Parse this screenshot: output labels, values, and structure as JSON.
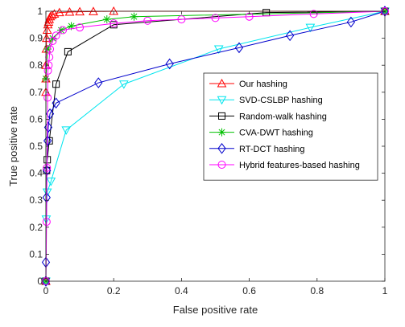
{
  "chart_data": {
    "type": "line",
    "title": "",
    "xlabel": "False positive rate",
    "ylabel": "True positive rate",
    "xlim": [
      0,
      1
    ],
    "ylim": [
      0,
      1
    ],
    "xticks": [
      "0",
      "0.2",
      "0.4",
      "0.6",
      "0.8",
      "1"
    ],
    "yticks": [
      "0",
      "0.1",
      "0.2",
      "0.3",
      "0.4",
      "0.5",
      "0.6",
      "0.7",
      "0.8",
      "0.9",
      "1"
    ],
    "grid": false,
    "legend_position": "center-right",
    "series": [
      {
        "name": "Our hashing",
        "color": "#ff0000",
        "marker": "triangle-up",
        "points": [
          [
            0,
            0
          ],
          [
            0,
            0.7
          ],
          [
            0,
            0.75
          ],
          [
            0,
            0.8
          ],
          [
            0.001,
            0.86
          ],
          [
            0.002,
            0.9
          ],
          [
            0.004,
            0.93
          ],
          [
            0.006,
            0.95
          ],
          [
            0.008,
            0.96
          ],
          [
            0.01,
            0.97
          ],
          [
            0.013,
            0.98
          ],
          [
            0.018,
            0.985
          ],
          [
            0.025,
            0.99
          ],
          [
            0.04,
            0.995
          ],
          [
            0.07,
            0.997
          ],
          [
            0.1,
            0.998
          ],
          [
            0.14,
            0.999
          ],
          [
            0.2,
            1
          ],
          [
            1,
            1
          ]
        ]
      },
      {
        "name": "SVD-CSLBP hashing",
        "color": "#00e5ee",
        "marker": "triangle-down",
        "points": [
          [
            0,
            0
          ],
          [
            0.001,
            0.23
          ],
          [
            0.004,
            0.33
          ],
          [
            0.015,
            0.37
          ],
          [
            0.06,
            0.56
          ],
          [
            0.23,
            0.73
          ],
          [
            0.51,
            0.86
          ],
          [
            0.78,
            0.94
          ],
          [
            1,
            1
          ]
        ]
      },
      {
        "name": "Random-walk hashing",
        "color": "#000000",
        "marker": "square",
        "points": [
          [
            0,
            0
          ],
          [
            0.002,
            0.41
          ],
          [
            0.004,
            0.45
          ],
          [
            0.01,
            0.52
          ],
          [
            0.03,
            0.73
          ],
          [
            0.065,
            0.85
          ],
          [
            0.2,
            0.95
          ],
          [
            0.65,
            0.995
          ],
          [
            1,
            1
          ]
        ]
      },
      {
        "name": "CVA-DWT hashing",
        "color": "#00c000",
        "marker": "asterisk",
        "points": [
          [
            0,
            0
          ],
          [
            0,
            0.75
          ],
          [
            0.005,
            0.86
          ],
          [
            0.02,
            0.9
          ],
          [
            0.045,
            0.93
          ],
          [
            0.075,
            0.945
          ],
          [
            0.18,
            0.97
          ],
          [
            0.26,
            0.98
          ],
          [
            1,
            1
          ]
        ]
      },
      {
        "name": "RT-DCT hashing",
        "color": "#0000cc",
        "marker": "diamond",
        "points": [
          [
            0,
            0
          ],
          [
            0,
            0.07
          ],
          [
            0.002,
            0.31
          ],
          [
            0.003,
            0.41
          ],
          [
            0.005,
            0.52
          ],
          [
            0.007,
            0.57
          ],
          [
            0.012,
            0.62
          ],
          [
            0.03,
            0.66
          ],
          [
            0.155,
            0.735
          ],
          [
            0.365,
            0.805
          ],
          [
            0.57,
            0.865
          ],
          [
            0.72,
            0.91
          ],
          [
            0.9,
            0.96
          ],
          [
            1,
            1
          ]
        ]
      },
      {
        "name": "Hybrid features-based hashing",
        "color": "#ff00ff",
        "marker": "circle",
        "points": [
          [
            0,
            0
          ],
          [
            0.002,
            0.22
          ],
          [
            0.003,
            0.42
          ],
          [
            0.005,
            0.68
          ],
          [
            0.006,
            0.78
          ],
          [
            0.008,
            0.8
          ],
          [
            0.01,
            0.83
          ],
          [
            0.012,
            0.86
          ],
          [
            0.02,
            0.89
          ],
          [
            0.03,
            0.91
          ],
          [
            0.05,
            0.93
          ],
          [
            0.1,
            0.94
          ],
          [
            0.2,
            0.955
          ],
          [
            0.3,
            0.965
          ],
          [
            0.4,
            0.97
          ],
          [
            0.5,
            0.975
          ],
          [
            0.6,
            0.98
          ],
          [
            0.79,
            0.99
          ],
          [
            1,
            1
          ]
        ]
      }
    ]
  }
}
